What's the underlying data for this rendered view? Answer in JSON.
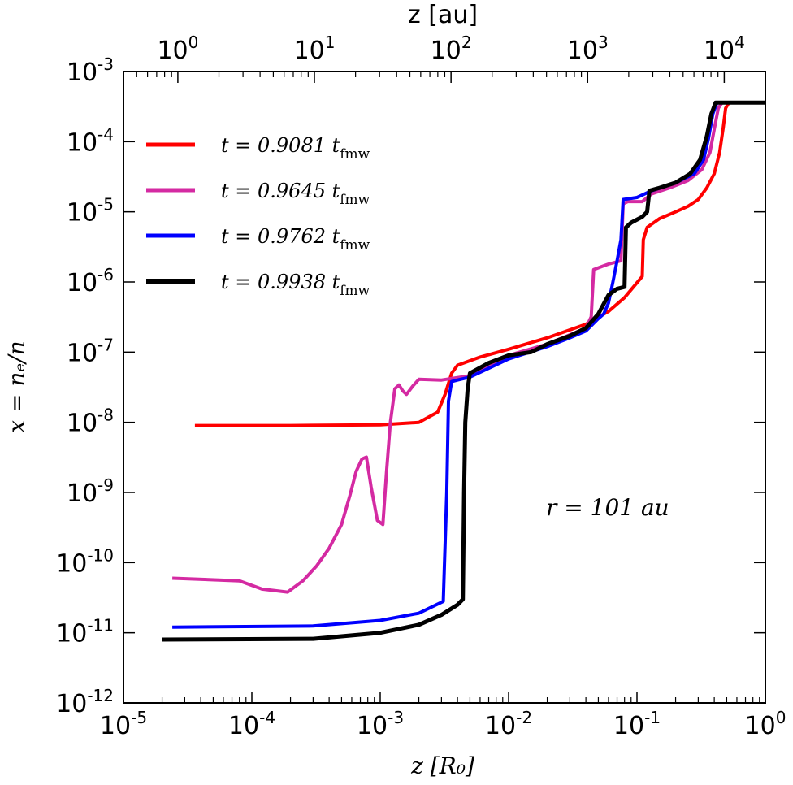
{
  "chart_data": {
    "type": "line",
    "x_scale": "log",
    "y_scale": "log",
    "xlim": [
      1e-05,
      1
    ],
    "ylim": [
      1e-12,
      0.001
    ],
    "top_xlim_au": [
      0.4,
      20000
    ],
    "xlabel": "z [R₀]",
    "ylabel": "x = nₑ/n",
    "top_xlabel": "z [au]",
    "x_ticks": [
      {
        "v": 1e-05,
        "base": "10",
        "exp": "-5"
      },
      {
        "v": 0.0001,
        "base": "10",
        "exp": "-4"
      },
      {
        "v": 0.001,
        "base": "10",
        "exp": "-3"
      },
      {
        "v": 0.01,
        "base": "10",
        "exp": "-2"
      },
      {
        "v": 0.1,
        "base": "10",
        "exp": "-1"
      },
      {
        "v": 1,
        "base": "10",
        "exp": "0"
      }
    ],
    "top_ticks": [
      {
        "v": 1,
        "base": "10",
        "exp": "0"
      },
      {
        "v": 10,
        "base": "10",
        "exp": "1"
      },
      {
        "v": 100,
        "base": "10",
        "exp": "2"
      },
      {
        "v": 1000,
        "base": "10",
        "exp": "3"
      },
      {
        "v": 10000,
        "base": "10",
        "exp": "4"
      }
    ],
    "y_ticks": [
      {
        "v": 1e-12,
        "base": "10",
        "exp": "-12"
      },
      {
        "v": 1e-11,
        "base": "10",
        "exp": "-11"
      },
      {
        "v": 1e-10,
        "base": "10",
        "exp": "-10"
      },
      {
        "v": 1e-09,
        "base": "10",
        "exp": "-9"
      },
      {
        "v": 1e-08,
        "base": "10",
        "exp": "-8"
      },
      {
        "v": 1e-07,
        "base": "10",
        "exp": "-7"
      },
      {
        "v": 1e-06,
        "base": "10",
        "exp": "-6"
      },
      {
        "v": 1e-05,
        "base": "10",
        "exp": "-5"
      },
      {
        "v": 0.0001,
        "base": "10",
        "exp": "-4"
      },
      {
        "v": 0.001,
        "base": "10",
        "exp": "-3"
      }
    ],
    "annotation": "r = 101 au",
    "legend_position": "upper-left",
    "series": [
      {
        "name": "t = 0.9081 t_fmw",
        "legend_value": "t = 0.9081 t",
        "legend_sub": "fmw",
        "color": "#ff0000",
        "points": [
          [
            3.6e-05,
            9e-09
          ],
          [
            0.0002,
            9e-09
          ],
          [
            0.001,
            9.2e-09
          ],
          [
            0.002,
            1e-08
          ],
          [
            0.0028,
            1.4e-08
          ],
          [
            0.0032,
            2.5e-08
          ],
          [
            0.0036,
            5e-08
          ],
          [
            0.004,
            6.5e-08
          ],
          [
            0.006,
            8.5e-08
          ],
          [
            0.01,
            1.1e-07
          ],
          [
            0.02,
            1.6e-07
          ],
          [
            0.04,
            2.5e-07
          ],
          [
            0.06,
            3.8e-07
          ],
          [
            0.08,
            6e-07
          ],
          [
            0.11,
            1.2e-06
          ],
          [
            0.112,
            4e-06
          ],
          [
            0.12,
            6e-06
          ],
          [
            0.15,
            8e-06
          ],
          [
            0.2,
            1e-05
          ],
          [
            0.25,
            1.2e-05
          ],
          [
            0.3,
            1.5e-05
          ],
          [
            0.35,
            2.2e-05
          ],
          [
            0.4,
            3.5e-05
          ],
          [
            0.44,
            7e-05
          ],
          [
            0.47,
            0.00016
          ],
          [
            0.49,
            0.0003
          ],
          [
            0.52,
            0.00036
          ],
          [
            1,
            0.00036
          ]
        ]
      },
      {
        "name": "t = 0.9645 t_fmw",
        "legend_value": "t = 0.9645 t",
        "legend_sub": "fmw",
        "color": "#d42aa2",
        "points": [
          [
            2.4e-05,
            6e-11
          ],
          [
            8e-05,
            5.5e-11
          ],
          [
            0.00012,
            4.2e-11
          ],
          [
            0.00019,
            3.8e-11
          ],
          [
            0.00025,
            5.5e-11
          ],
          [
            0.00032,
            9e-11
          ],
          [
            0.0004,
            1.6e-10
          ],
          [
            0.0005,
            3.5e-10
          ],
          [
            0.00058,
            9e-10
          ],
          [
            0.00065,
            2e-09
          ],
          [
            0.00072,
            3e-09
          ],
          [
            0.00078,
            3.2e-09
          ],
          [
            0.00085,
            1.2e-09
          ],
          [
            0.00095,
            4e-10
          ],
          [
            0.00105,
            3.5e-10
          ],
          [
            0.00112,
            2e-09
          ],
          [
            0.0012,
            1e-08
          ],
          [
            0.0013,
            3e-08
          ],
          [
            0.0014,
            3.4e-08
          ],
          [
            0.0015,
            2.8e-08
          ],
          [
            0.0016,
            2.5e-08
          ],
          [
            0.0018,
            3.3e-08
          ],
          [
            0.002,
            4.1e-08
          ],
          [
            0.003,
            4e-08
          ],
          [
            0.005,
            4.6e-08
          ],
          [
            0.01,
            9e-08
          ],
          [
            0.02,
            1.3e-07
          ],
          [
            0.04,
            2.2e-07
          ],
          [
            0.044,
            3.2e-07
          ],
          [
            0.046,
            1.5e-06
          ],
          [
            0.055,
            1.7e-06
          ],
          [
            0.06,
            1.8e-06
          ],
          [
            0.075,
            2e-06
          ],
          [
            0.078,
            1.3e-05
          ],
          [
            0.085,
            1.4e-05
          ],
          [
            0.11,
            1.4e-05
          ],
          [
            0.13,
            1.8e-05
          ],
          [
            0.18,
            2.2e-05
          ],
          [
            0.25,
            2.8e-05
          ],
          [
            0.32,
            4e-05
          ],
          [
            0.37,
            7e-05
          ],
          [
            0.4,
            0.00015
          ],
          [
            0.43,
            0.0003
          ],
          [
            0.46,
            0.00036
          ],
          [
            1,
            0.00036
          ]
        ]
      },
      {
        "name": "t = 0.9762 t_fmw",
        "legend_value": "t = 0.9762 t",
        "legend_sub": "fmw",
        "color": "#0000ff",
        "points": [
          [
            2.4e-05,
            1.2e-11
          ],
          [
            0.0003,
            1.25e-11
          ],
          [
            0.001,
            1.5e-11
          ],
          [
            0.002,
            1.9e-11
          ],
          [
            0.0031,
            2.8e-11
          ],
          [
            0.0033,
            1e-09
          ],
          [
            0.0034,
            2e-08
          ],
          [
            0.0036,
            3.8e-08
          ],
          [
            0.004,
            4e-08
          ],
          [
            0.005,
            4.4e-08
          ],
          [
            0.01,
            8e-08
          ],
          [
            0.02,
            1.2e-07
          ],
          [
            0.03,
            1.6e-07
          ],
          [
            0.04,
            2e-07
          ],
          [
            0.05,
            3e-07
          ],
          [
            0.055,
            3.5e-07
          ],
          [
            0.06,
            5e-07
          ],
          [
            0.065,
            1e-06
          ],
          [
            0.07,
            2e-06
          ],
          [
            0.075,
            4e-06
          ],
          [
            0.078,
            1.5e-05
          ],
          [
            0.1,
            1.6e-05
          ],
          [
            0.13,
            2e-05
          ],
          [
            0.2,
            2.6e-05
          ],
          [
            0.28,
            3.5e-05
          ],
          [
            0.33,
            5.5e-05
          ],
          [
            0.36,
            0.00011
          ],
          [
            0.39,
            0.00025
          ],
          [
            0.42,
            0.00036
          ],
          [
            1,
            0.00036
          ]
        ]
      },
      {
        "name": "t = 0.9938 t_fmw",
        "legend_value": "t = 0.9938 t",
        "legend_sub": "fmw",
        "color": "#000000",
        "points": [
          [
            2e-05,
            8e-12
          ],
          [
            0.0003,
            8.2e-12
          ],
          [
            0.001,
            1e-11
          ],
          [
            0.002,
            1.3e-11
          ],
          [
            0.003,
            1.8e-11
          ],
          [
            0.004,
            2.5e-11
          ],
          [
            0.0044,
            3e-11
          ],
          [
            0.0045,
            1e-09
          ],
          [
            0.0046,
            1e-08
          ],
          [
            0.0048,
            3e-08
          ],
          [
            0.005,
            5e-08
          ],
          [
            0.007,
            7e-08
          ],
          [
            0.01,
            9e-08
          ],
          [
            0.015,
            1e-07
          ],
          [
            0.02,
            1.3e-07
          ],
          [
            0.03,
            1.7e-07
          ],
          [
            0.04,
            2.2e-07
          ],
          [
            0.05,
            3.5e-07
          ],
          [
            0.06,
            6.5e-07
          ],
          [
            0.07,
            8e-07
          ],
          [
            0.08,
            8.5e-07
          ],
          [
            0.082,
            6e-06
          ],
          [
            0.09,
            7e-06
          ],
          [
            0.11,
            8.5e-06
          ],
          [
            0.12,
            1e-05
          ],
          [
            0.125,
            2e-05
          ],
          [
            0.15,
            2.2e-05
          ],
          [
            0.2,
            2.6e-05
          ],
          [
            0.26,
            3.5e-05
          ],
          [
            0.31,
            5.5e-05
          ],
          [
            0.35,
            0.00012
          ],
          [
            0.38,
            0.00025
          ],
          [
            0.41,
            0.00036
          ],
          [
            1,
            0.00036
          ]
        ]
      }
    ]
  }
}
